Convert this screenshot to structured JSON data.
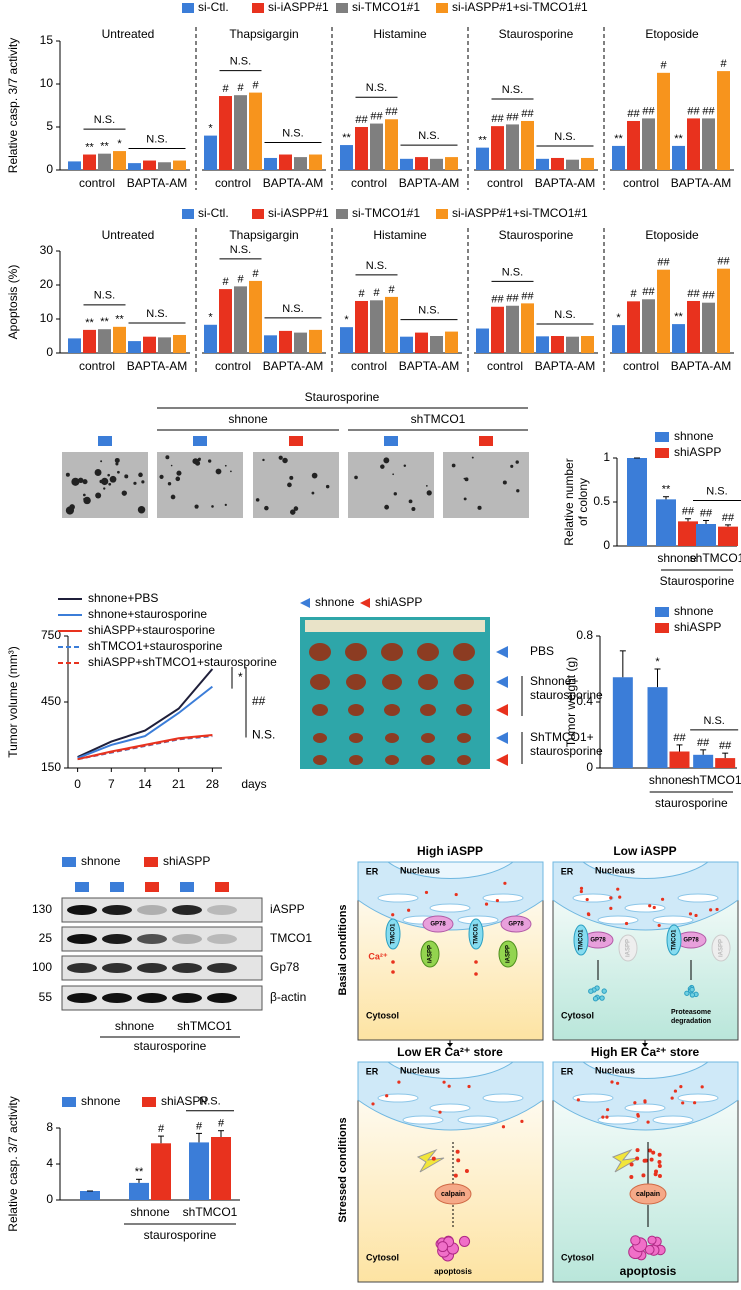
{
  "chart_data": [
    {
      "type": "bar",
      "ylabel": "Relative casp. 3/7 activity",
      "ylim": [
        0,
        15
      ],
      "yticks": [
        0,
        5,
        10,
        15
      ],
      "series": [
        {
          "name": "si-Ctl.",
          "color": "#3b7dd8"
        },
        {
          "name": "si-iASPP#1",
          "color": "#e8321e"
        },
        {
          "name": "si-TMCO1#1",
          "color": "#7f7f7f"
        },
        {
          "name": "si-iASPP#1+si-TMCO1#1",
          "color": "#f7941d"
        }
      ],
      "panels": [
        {
          "title": "Untreated",
          "categories": [
            "control",
            "BAPTA-AM"
          ],
          "values": [
            [
              1.0,
              1.8,
              1.9,
              2.2
            ],
            [
              0.8,
              1.1,
              0.9,
              1.1
            ]
          ],
          "significance": [
            [
              null,
              "**",
              "**",
              "*"
            ],
            [
              null,
              null,
              null,
              null
            ]
          ],
          "annotations": [
            "N.S.",
            "N.S."
          ]
        },
        {
          "title": "Thapsigargin",
          "categories": [
            "control",
            "BAPTA-AM"
          ],
          "values": [
            [
              4.0,
              8.6,
              8.7,
              9.0
            ],
            [
              1.4,
              1.8,
              1.5,
              1.8
            ]
          ],
          "significance": [
            [
              "*",
              "#",
              "#",
              "#"
            ],
            [
              null,
              null,
              null,
              null
            ]
          ],
          "annotations": [
            "N.S.",
            "N.S."
          ]
        },
        {
          "title": "Histamine",
          "categories": [
            "control",
            "BAPTA-AM"
          ],
          "values": [
            [
              2.9,
              5.0,
              5.4,
              5.9
            ],
            [
              1.3,
              1.5,
              1.3,
              1.5
            ]
          ],
          "significance": [
            [
              "**",
              "##",
              "##",
              "##"
            ],
            [
              null,
              null,
              null,
              null
            ]
          ],
          "annotations": [
            "N.S.",
            "N.S."
          ]
        },
        {
          "title": "Staurosporine",
          "categories": [
            "control",
            "BAPTA-AM"
          ],
          "values": [
            [
              2.6,
              5.1,
              5.3,
              5.7
            ],
            [
              1.3,
              1.4,
              1.2,
              1.4
            ]
          ],
          "significance": [
            [
              "**",
              "##",
              "##",
              "##"
            ],
            [
              null,
              null,
              null,
              null
            ]
          ],
          "annotations": [
            "N.S.",
            "N.S."
          ]
        },
        {
          "title": "Etoposide",
          "categories": [
            "control",
            "BAPTA-AM"
          ],
          "values": [
            [
              2.8,
              5.7,
              6.0,
              11.3
            ],
            [
              2.8,
              6.0,
              6.0,
              11.5
            ]
          ],
          "significance": [
            [
              "**",
              "##",
              "##",
              "#"
            ],
            [
              "**",
              "##",
              "##",
              "#"
            ]
          ],
          "annotations": [
            null,
            null
          ]
        }
      ]
    },
    {
      "type": "bar",
      "ylabel": "Apoptosis (%)",
      "ylim": [
        0,
        30
      ],
      "yticks": [
        0,
        10,
        20,
        30
      ],
      "series": [
        {
          "name": "si-Ctl.",
          "color": "#3b7dd8"
        },
        {
          "name": "si-iASPP#1",
          "color": "#e8321e"
        },
        {
          "name": "si-TMCO1#1",
          "color": "#7f7f7f"
        },
        {
          "name": "si-iASPP#1+si-TMCO1#1",
          "color": "#f7941d"
        }
      ],
      "panels": [
        {
          "title": "Untreated",
          "categories": [
            "control",
            "BAPTA-AM"
          ],
          "values": [
            [
              4.3,
              6.8,
              7.0,
              7.7
            ],
            [
              3.5,
              4.8,
              4.6,
              5.3
            ]
          ],
          "significance": [
            [
              null,
              "**",
              "**",
              "**"
            ],
            [
              null,
              null,
              null,
              null
            ]
          ],
          "annotations": [
            "N.S.",
            "N.S."
          ]
        },
        {
          "title": "Thapsigargin",
          "categories": [
            "control",
            "BAPTA-AM"
          ],
          "values": [
            [
              8.3,
              18.8,
              19.6,
              21.2
            ],
            [
              5.2,
              6.5,
              6.0,
              6.8
            ]
          ],
          "significance": [
            [
              "*",
              "#",
              "#",
              "#"
            ],
            [
              null,
              null,
              null,
              null
            ]
          ],
          "annotations": [
            "N.S.",
            "N.S."
          ]
        },
        {
          "title": "Histamine",
          "categories": [
            "control",
            "BAPTA-AM"
          ],
          "values": [
            [
              7.6,
              15.3,
              15.5,
              16.5
            ],
            [
              4.8,
              6.0,
              5.0,
              6.3
            ]
          ],
          "significance": [
            [
              "*",
              "#",
              "#",
              "#"
            ],
            [
              null,
              null,
              null,
              null
            ]
          ],
          "annotations": [
            "N.S.",
            "N.S."
          ]
        },
        {
          "title": "Staurosporine",
          "categories": [
            "control",
            "BAPTA-AM"
          ],
          "values": [
            [
              7.2,
              13.6,
              13.9,
              14.6
            ],
            [
              4.9,
              5.0,
              4.8,
              5.0
            ]
          ],
          "significance": [
            [
              null,
              "##",
              "##",
              "##"
            ],
            [
              null,
              null,
              null,
              null
            ]
          ],
          "annotations": [
            "N.S.",
            "N.S."
          ]
        },
        {
          "title": "Etoposide",
          "categories": [
            "control",
            "BAPTA-AM"
          ],
          "values": [
            [
              8.2,
              15.2,
              15.8,
              24.5
            ],
            [
              8.5,
              15.3,
              14.8,
              24.8
            ]
          ],
          "significance": [
            [
              "*",
              "#",
              "##",
              "##"
            ],
            [
              "**",
              "##",
              "##",
              "##"
            ]
          ],
          "annotations": [
            null,
            null
          ]
        }
      ]
    },
    {
      "type": "bar",
      "ylabel": [
        "Relative number",
        "of colony"
      ],
      "ylim": [
        0,
        1
      ],
      "yticks": [
        0,
        0.5,
        1
      ],
      "legend_direction": "column",
      "categories": [
        null,
        "shnone",
        "shTMCO1"
      ],
      "group_label": "Staurosporine",
      "annotations": [
        null,
        null,
        "N.S."
      ],
      "series": [
        {
          "name": "shnone",
          "color": "#3b7dd8",
          "values": [
            1,
            0.53,
            0.25
          ],
          "errors": [
            0,
            0.03,
            0.04
          ],
          "significance": [
            null,
            "**",
            "##"
          ]
        },
        {
          "name": "shiASPP",
          "color": "#e8321e",
          "values": [
            null,
            0.28,
            0.22
          ],
          "errors": [
            null,
            0.03,
            0.02
          ],
          "significance": [
            null,
            "##",
            "##"
          ]
        }
      ]
    },
    {
      "type": "line",
      "ylabel": "Tumor volume (mm³)",
      "xlabel": "days",
      "x": [
        0,
        7,
        14,
        21,
        28
      ],
      "xlim": [
        -2,
        30
      ],
      "xticks": [
        0,
        7,
        14,
        21,
        28
      ],
      "ylim": [
        150,
        750
      ],
      "yticks": [
        150,
        450,
        750
      ],
      "annotations": [
        "*",
        "##",
        "N.S."
      ],
      "series": [
        {
          "name": "shnone+PBS",
          "color": "#1f1f3a",
          "dash": false,
          "values": [
            200,
            270,
            320,
            420,
            600
          ]
        },
        {
          "name": "shnone+staurosporine",
          "color": "#3b7dd8",
          "dash": false,
          "values": [
            195,
            255,
            295,
            400,
            520
          ]
        },
        {
          "name": "shiASPP+staurosporine",
          "color": "#e8321e",
          "dash": false,
          "values": [
            190,
            225,
            255,
            285,
            300
          ]
        },
        {
          "name": "shTMCO1+staurosporine",
          "color": "#3b7dd8",
          "dash": true,
          "values": [
            190,
            220,
            250,
            280,
            295
          ]
        },
        {
          "name": "shiASPP+shTMCO1+staurosporine",
          "color": "#e8321e",
          "dash": true,
          "values": [
            190,
            222,
            252,
            282,
            298
          ]
        }
      ]
    },
    {
      "type": "bar",
      "ylabel": "Tumor weight (g)",
      "ylim": [
        0,
        0.8
      ],
      "yticks": [
        0,
        0.4,
        0.8
      ],
      "legend_direction": "column",
      "categories": [
        null,
        "shnone",
        "shTMCO1"
      ],
      "group_label": "staurosporine",
      "annotations": [
        null,
        null,
        "N.S."
      ],
      "series": [
        {
          "name": "shnone",
          "color": "#3b7dd8",
          "values": [
            0.55,
            0.49,
            0.08
          ],
          "errors": [
            0.16,
            0.11,
            0.03
          ],
          "significance": [
            null,
            "*",
            "##"
          ]
        },
        {
          "name": "shiASPP",
          "color": "#e8321e",
          "values": [
            null,
            0.1,
            0.06
          ],
          "errors": [
            null,
            0.04,
            0.03
          ],
          "significance": [
            null,
            "##",
            "##"
          ]
        }
      ]
    },
    {
      "type": "bar",
      "ylabel": "Relative casp. 3/7 activity",
      "ylim": [
        0,
        8
      ],
      "yticks": [
        0,
        4,
        8
      ],
      "legend_direction": "row",
      "categories": [
        null,
        "shnone",
        "shTMCO1"
      ],
      "group_label": "staurosporine",
      "annotations": [
        null,
        null,
        "N.S."
      ],
      "series": [
        {
          "name": "shnone",
          "color": "#3b7dd8",
          "values": [
            1,
            1.9,
            6.4
          ],
          "errors": [
            0,
            0.4,
            1.0
          ],
          "significance": [
            null,
            "**",
            "#"
          ]
        },
        {
          "name": "shiASPP",
          "color": "#e8321e",
          "values": [
            null,
            6.3,
            7.0
          ],
          "errors": [
            null,
            0.8,
            0.7
          ],
          "significance": [
            null,
            "#",
            "#"
          ]
        }
      ]
    }
  ],
  "colony_images": {
    "treatment": "Staurosporine",
    "groups": [
      "shnone",
      "shTMCO1"
    ]
  },
  "tumor_photo": {
    "legend": [
      {
        "name": "shnone",
        "color": "#3b7dd8"
      },
      {
        "name": "shiASPP",
        "color": "#e8321e"
      }
    ],
    "labels": [
      [
        "PBS"
      ],
      [
        "Shnone+",
        "staurosporine"
      ],
      [
        "ShTMCO1+",
        "staurosporine"
      ]
    ]
  },
  "western_blot": {
    "legend": [
      {
        "name": "shnone",
        "color": "#3b7dd8"
      },
      {
        "name": "shiASPP",
        "color": "#e8321e"
      }
    ],
    "markers": [
      130,
      25,
      100,
      55
    ],
    "proteins": [
      "iASPP",
      "TMCO1",
      "Gp78",
      "β-actin"
    ],
    "groups": [
      "shnone",
      "shTMCO1"
    ],
    "treatment": "staurosporine"
  },
  "diagram": {
    "columns": [
      "High iASPP",
      "Low iASPP"
    ],
    "rows": [
      "Basial conditions",
      "Stressed conditions"
    ],
    "outcomes": [
      "Low ER Ca²⁺ store",
      "High ER Ca²⁺ store"
    ],
    "panels": [
      {
        "er": "ER",
        "nucleus": "Nucleaus",
        "proteins": [
          "TMCO1",
          "GP78",
          "iASPP",
          "TMCO1",
          "GP78",
          "iASPP"
        ],
        "ion": "Ca²⁺",
        "compartment": "Cytosol"
      },
      {
        "er": "ER",
        "nucleus": "Nucleaus",
        "proteins": [
          "GP78",
          "TMCO1",
          "iASPP",
          "GP78",
          "TMCO1",
          "iASPP"
        ],
        "compartment": "Cytosol",
        "fate": [
          "Proteasome",
          "degradation"
        ]
      },
      {
        "er": "ER",
        "nucleus": "Nucleaus",
        "enzyme": "calpain",
        "compartment": "Cytosol",
        "outcome": "apoptosis"
      },
      {
        "er": "ER",
        "nucleus": "Nucleaus",
        "enzyme": "calpain",
        "compartment": "Cytosol",
        "outcome": "apoptosis"
      }
    ]
  }
}
